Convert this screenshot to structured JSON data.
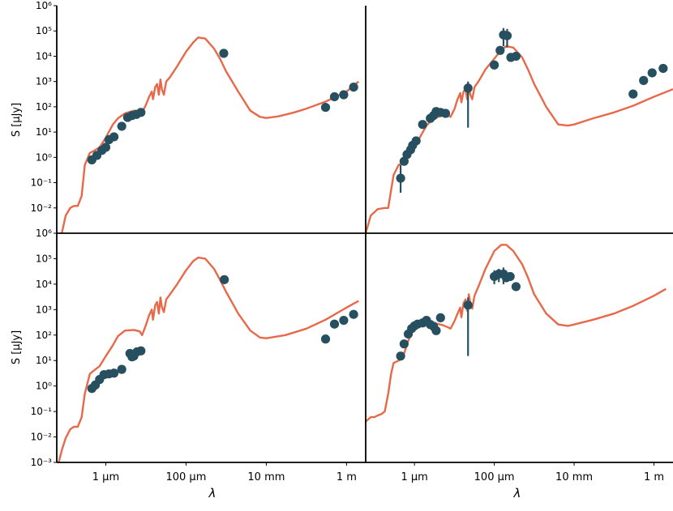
{
  "figure": {
    "y_label": "S [μJy]",
    "x_label": "λ",
    "y_tick_labels_top": [
      "10⁶",
      "10⁵",
      "10⁴",
      "10³",
      "10²",
      "10¹",
      "10⁰",
      "10⁻¹",
      "10⁻²"
    ],
    "y_tick_labels_bottom": [
      "10⁶",
      "10⁵",
      "10⁴",
      "10³",
      "10²",
      "10¹",
      "10⁰",
      "10⁻¹",
      "10⁻²",
      "10⁻³"
    ],
    "x_tick_labels": [
      "1 μm",
      "100 μm",
      "10 mm",
      "1 m"
    ],
    "colors": {
      "model": "#e8694a",
      "data": "#264f5f"
    }
  },
  "chart_data": [
    {
      "type": "scatter",
      "panel": "top-left",
      "x_scale": "log",
      "y_scale": "log",
      "xlim_um": [
        0.06,
        3000000
      ],
      "ylim": [
        0.001,
        1000000
      ],
      "model_sed": [
        [
          0.08,
          0.001
        ],
        [
          0.1,
          0.005
        ],
        [
          0.13,
          0.01
        ],
        [
          0.16,
          0.012
        ],
        [
          0.2,
          0.012
        ],
        [
          0.25,
          0.03
        ],
        [
          0.3,
          0.5
        ],
        [
          0.4,
          1.5
        ],
        [
          0.5,
          1.8
        ],
        [
          0.7,
          2.5
        ],
        [
          1,
          6
        ],
        [
          1.5,
          20
        ],
        [
          2,
          35
        ],
        [
          3,
          55
        ],
        [
          5,
          70
        ],
        [
          7,
          70
        ],
        [
          8,
          60
        ],
        [
          10,
          120
        ],
        [
          12,
          250
        ],
        [
          14,
          400
        ],
        [
          15,
          200
        ],
        [
          17,
          600
        ],
        [
          19,
          800
        ],
        [
          21,
          300
        ],
        [
          23,
          1200
        ],
        [
          25,
          500
        ],
        [
          28,
          300
        ],
        [
          32,
          1000
        ],
        [
          40,
          1500
        ],
        [
          60,
          4000
        ],
        [
          100,
          15000
        ],
        [
          150,
          35000
        ],
        [
          200,
          55000
        ],
        [
          300,
          50000
        ],
        [
          500,
          20000
        ],
        [
          700,
          8000
        ],
        [
          1000,
          2500
        ],
        [
          2000,
          400
        ],
        [
          4000,
          70
        ],
        [
          7000,
          40
        ],
        [
          10000,
          36
        ],
        [
          20000,
          42
        ],
        [
          50000,
          60
        ],
        [
          100000,
          85
        ],
        [
          300000,
          160
        ],
        [
          1000000,
          400
        ],
        [
          2000000,
          1000
        ]
      ],
      "observations": [
        {
          "x": 0.45,
          "y": 0.8
        },
        {
          "x": 0.6,
          "y": 1.2
        },
        {
          "x": 0.8,
          "y": 1.9
        },
        {
          "x": 1.0,
          "y": 2.5
        },
        {
          "x": 1.2,
          "y": 5
        },
        {
          "x": 1.6,
          "y": 6.5
        },
        {
          "x": 2.5,
          "y": 17
        },
        {
          "x": 3.5,
          "y": 38
        },
        {
          "x": 4.5,
          "y": 45
        },
        {
          "x": 5.8,
          "y": 50
        },
        {
          "x": 7.5,
          "y": 60
        },
        {
          "x": 870,
          "y": 13000
        },
        {
          "x": 300000,
          "y": 95
        },
        {
          "x": 500000,
          "y": 250
        },
        {
          "x": 850000,
          "y": 300
        },
        {
          "x": 1500000,
          "y": 600
        }
      ]
    },
    {
      "type": "scatter",
      "panel": "top-right",
      "x_scale": "log",
      "y_scale": "log",
      "xlim_um": [
        0.06,
        3000000
      ],
      "ylim": [
        0.001,
        1000000
      ],
      "model_sed": [
        [
          0.06,
          0.001
        ],
        [
          0.08,
          0.005
        ],
        [
          0.12,
          0.009
        ],
        [
          0.18,
          0.01
        ],
        [
          0.22,
          0.01
        ],
        [
          0.26,
          0.05
        ],
        [
          0.3,
          0.2
        ],
        [
          0.4,
          0.5
        ],
        [
          0.5,
          0.6
        ],
        [
          0.7,
          1
        ],
        [
          1,
          2.5
        ],
        [
          1.5,
          8
        ],
        [
          2,
          18
        ],
        [
          3,
          35
        ],
        [
          5,
          45
        ],
        [
          7,
          45
        ],
        [
          8,
          40
        ],
        [
          10,
          80
        ],
        [
          12,
          200
        ],
        [
          14,
          350
        ],
        [
          15,
          150
        ],
        [
          17,
          400
        ],
        [
          19,
          500
        ],
        [
          21,
          200
        ],
        [
          23,
          700
        ],
        [
          25,
          300
        ],
        [
          28,
          200
        ],
        [
          32,
          600
        ],
        [
          40,
          1000
        ],
        [
          60,
          3000
        ],
        [
          100,
          8000
        ],
        [
          150,
          18000
        ],
        [
          200,
          25000
        ],
        [
          300,
          22000
        ],
        [
          500,
          9000
        ],
        [
          700,
          3000
        ],
        [
          1000,
          800
        ],
        [
          2000,
          100
        ],
        [
          4000,
          20
        ],
        [
          7000,
          18
        ],
        [
          10000,
          20
        ],
        [
          30000,
          35
        ],
        [
          100000,
          60
        ],
        [
          300000,
          110
        ],
        [
          1000000,
          250
        ],
        [
          3000000,
          500
        ]
      ],
      "observations": [
        {
          "x": 0.45,
          "y": 0.15,
          "err": [
            0.04,
            0.5
          ]
        },
        {
          "x": 0.55,
          "y": 0.7
        },
        {
          "x": 0.65,
          "y": 1.3
        },
        {
          "x": 0.8,
          "y": 2
        },
        {
          "x": 0.9,
          "y": 3
        },
        {
          "x": 1.1,
          "y": 4.5
        },
        {
          "x": 1.6,
          "y": 20
        },
        {
          "x": 2.5,
          "y": 35
        },
        {
          "x": 3.0,
          "y": 45
        },
        {
          "x": 3.5,
          "y": 65
        },
        {
          "x": 4.5,
          "y": 60
        },
        {
          "x": 6,
          "y": 55
        },
        {
          "x": 22,
          "y": 550,
          "err": [
            15,
            1000
          ]
        },
        {
          "x": 100,
          "y": 4500
        },
        {
          "x": 140,
          "y": 17000
        },
        {
          "x": 170,
          "y": 70000,
          "err": [
            25000,
            130000
          ]
        },
        {
          "x": 210,
          "y": 65000,
          "err": [
            22000,
            120000
          ]
        },
        {
          "x": 260,
          "y": 9000
        },
        {
          "x": 350,
          "y": 10000
        },
        {
          "x": 300000,
          "y": 320
        },
        {
          "x": 550000,
          "y": 1100
        },
        {
          "x": 900000,
          "y": 2200
        },
        {
          "x": 1700000,
          "y": 3300
        }
      ]
    },
    {
      "type": "scatter",
      "panel": "bottom-left",
      "x_scale": "log",
      "y_scale": "log",
      "xlim_um": [
        0.06,
        3000000
      ],
      "ylim": [
        0.001,
        1000000
      ],
      "model_sed": [
        [
          0.065,
          0.0008
        ],
        [
          0.08,
          0.003
        ],
        [
          0.1,
          0.009
        ],
        [
          0.13,
          0.02
        ],
        [
          0.16,
          0.025
        ],
        [
          0.2,
          0.025
        ],
        [
          0.25,
          0.06
        ],
        [
          0.3,
          0.5
        ],
        [
          0.4,
          3
        ],
        [
          0.5,
          4
        ],
        [
          0.7,
          6
        ],
        [
          1,
          15
        ],
        [
          1.5,
          40
        ],
        [
          2,
          90
        ],
        [
          3,
          150
        ],
        [
          5,
          160
        ],
        [
          7,
          140
        ],
        [
          8,
          100
        ],
        [
          10,
          250
        ],
        [
          12,
          600
        ],
        [
          14,
          1000
        ],
        [
          15,
          400
        ],
        [
          17,
          1500
        ],
        [
          19,
          2000
        ],
        [
          21,
          700
        ],
        [
          23,
          3000
        ],
        [
          25,
          1300
        ],
        [
          28,
          800
        ],
        [
          32,
          2500
        ],
        [
          40,
          4000
        ],
        [
          60,
          10000
        ],
        [
          100,
          35000
        ],
        [
          150,
          80000
        ],
        [
          200,
          110000
        ],
        [
          300,
          100000
        ],
        [
          500,
          40000
        ],
        [
          700,
          15000
        ],
        [
          1000,
          5000
        ],
        [
          2000,
          700
        ],
        [
          4000,
          150
        ],
        [
          7000,
          80
        ],
        [
          10000,
          75
        ],
        [
          30000,
          100
        ],
        [
          100000,
          180
        ],
        [
          300000,
          400
        ],
        [
          1000000,
          1200
        ],
        [
          2000000,
          2200
        ]
      ],
      "observations": [
        {
          "x": 0.45,
          "y": 0.8
        },
        {
          "x": 0.55,
          "y": 1.1
        },
        {
          "x": 0.7,
          "y": 1.8
        },
        {
          "x": 0.9,
          "y": 2.8
        },
        {
          "x": 1.2,
          "y": 3
        },
        {
          "x": 1.6,
          "y": 3.2
        },
        {
          "x": 2.5,
          "y": 4.5
        },
        {
          "x": 4,
          "y": 19
        },
        {
          "x": 4.5,
          "y": 14
        },
        {
          "x": 5,
          "y": 15
        },
        {
          "x": 6,
          "y": 22
        },
        {
          "x": 7.5,
          "y": 24
        },
        {
          "x": 900,
          "y": 15000
        },
        {
          "x": 300000,
          "y": 70
        },
        {
          "x": 500000,
          "y": 270
        },
        {
          "x": 850000,
          "y": 380
        },
        {
          "x": 1500000,
          "y": 650
        }
      ]
    },
    {
      "type": "scatter",
      "panel": "bottom-right",
      "x_scale": "log",
      "y_scale": "log",
      "xlim_um": [
        0.06,
        3000000
      ],
      "ylim": [
        0.001,
        1000000
      ],
      "model_sed": [
        [
          0.06,
          0.04
        ],
        [
          0.08,
          0.06
        ],
        [
          0.1,
          0.06
        ],
        [
          0.12,
          0.07
        ],
        [
          0.15,
          0.08
        ],
        [
          0.18,
          0.1
        ],
        [
          0.22,
          0.5
        ],
        [
          0.26,
          3
        ],
        [
          0.3,
          8
        ],
        [
          0.4,
          10
        ],
        [
          0.5,
          12
        ],
        [
          0.7,
          60
        ],
        [
          1,
          200
        ],
        [
          1.5,
          350
        ],
        [
          2,
          350
        ],
        [
          3,
          300
        ],
        [
          5,
          250
        ],
        [
          7,
          200
        ],
        [
          8,
          180
        ],
        [
          10,
          350
        ],
        [
          12,
          700
        ],
        [
          14,
          1200
        ],
        [
          15,
          500
        ],
        [
          17,
          1800
        ],
        [
          19,
          2500
        ],
        [
          21,
          900
        ],
        [
          23,
          4000
        ],
        [
          25,
          1800
        ],
        [
          28,
          1100
        ],
        [
          32,
          3500
        ],
        [
          40,
          8000
        ],
        [
          60,
          40000
        ],
        [
          100,
          200000
        ],
        [
          150,
          350000
        ],
        [
          200,
          350000
        ],
        [
          300,
          200000
        ],
        [
          500,
          60000
        ],
        [
          700,
          18000
        ],
        [
          1000,
          4000
        ],
        [
          2000,
          700
        ],
        [
          4000,
          260
        ],
        [
          7000,
          230
        ],
        [
          10000,
          260
        ],
        [
          30000,
          400
        ],
        [
          100000,
          700
        ],
        [
          300000,
          1400
        ],
        [
          1000000,
          3500
        ],
        [
          2000000,
          6500
        ]
      ],
      "observations": [
        {
          "x": 0.45,
          "y": 15
        },
        {
          "x": 0.55,
          "y": 45
        },
        {
          "x": 0.7,
          "y": 110
        },
        {
          "x": 0.85,
          "y": 180
        },
        {
          "x": 1.0,
          "y": 230
        },
        {
          "x": 1.2,
          "y": 270
        },
        {
          "x": 1.6,
          "y": 300
        },
        {
          "x": 2.0,
          "y": 380
        },
        {
          "x": 2.5,
          "y": 260
        },
        {
          "x": 3.0,
          "y": 220
        },
        {
          "x": 3.5,
          "y": 150
        },
        {
          "x": 4.5,
          "y": 480
        },
        {
          "x": 22,
          "y": 1500,
          "err": [
            15,
            3000
          ]
        },
        {
          "x": 100,
          "y": 20000,
          "err": [
            10000,
            35000
          ]
        },
        {
          "x": 130,
          "y": 25000,
          "err": [
            12000,
            40000
          ]
        },
        {
          "x": 170,
          "y": 25000,
          "err": [
            10000,
            45000
          ]
        },
        {
          "x": 200,
          "y": 18000,
          "err": [
            12000,
            30000
          ]
        },
        {
          "x": 250,
          "y": 20000
        },
        {
          "x": 350,
          "y": 8000
        }
      ]
    }
  ]
}
